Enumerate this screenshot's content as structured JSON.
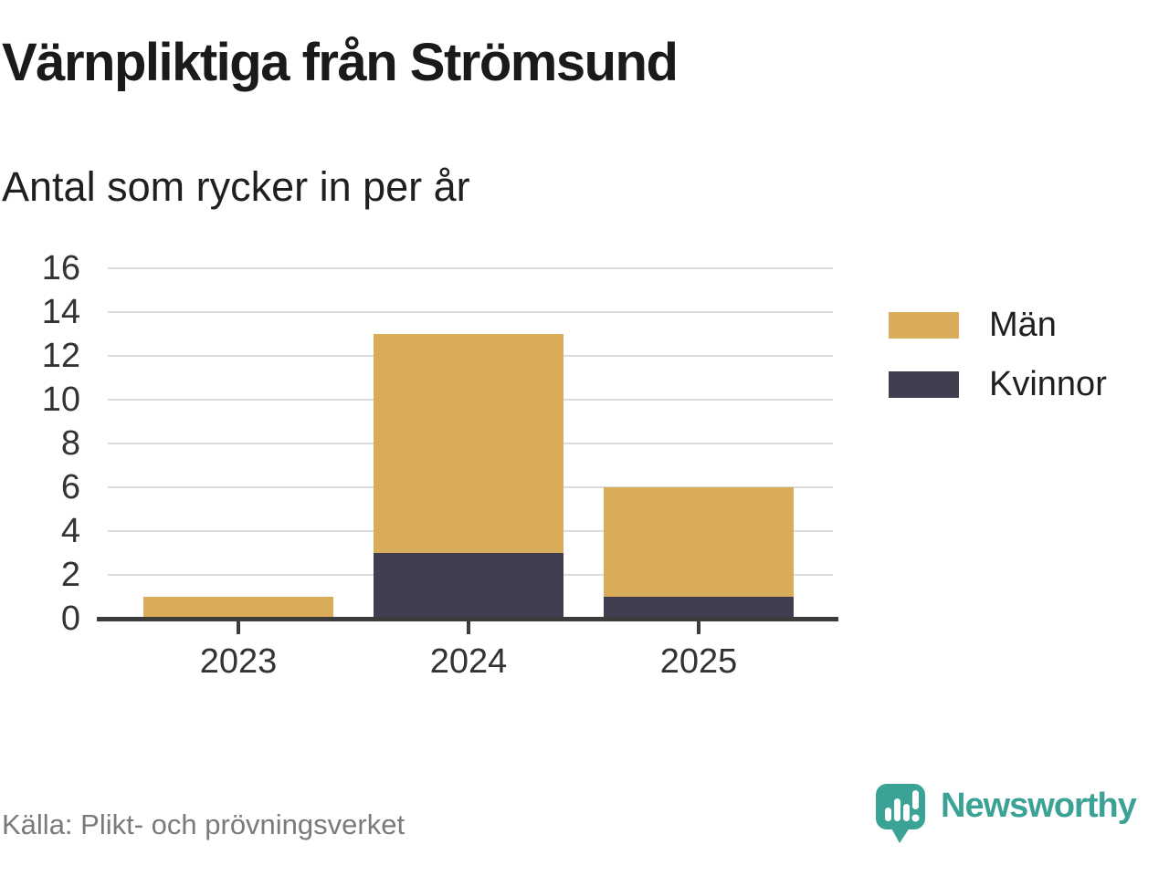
{
  "title": "Värnpliktiga från Strömsund",
  "subtitle": "Antal som rycker in per år",
  "source": "Källa: Plikt- och prövningsverket",
  "brand": {
    "name": "Newsworthy",
    "icon": "newsworthy-speech-bubble-chart-icon",
    "color": "#3BA296"
  },
  "colors": {
    "men": "#D9AC59",
    "women": "#413F4F",
    "grid": "#DDDDDD",
    "axis": "#3C3C3C",
    "tick_label": "#333333",
    "source_text": "#7A7A7A",
    "background": "#FFFFFF"
  },
  "chart_data": {
    "type": "bar",
    "stacked": true,
    "title": "Värnpliktiga från Strömsund",
    "subtitle": "Antal som rycker in per år",
    "categories": [
      "2023",
      "2024",
      "2025"
    ],
    "series": [
      {
        "name": "Män",
        "color": "#D9AC59",
        "values": [
          1,
          10,
          5
        ]
      },
      {
        "name": "Kvinnor",
        "color": "#413F4F",
        "values": [
          0,
          3,
          1
        ]
      }
    ],
    "stack_order_bottom_to_top": [
      "Kvinnor",
      "Män"
    ],
    "totals": [
      1,
      13,
      6
    ],
    "ylim": [
      0,
      16
    ],
    "yticks": [
      0,
      2,
      4,
      6,
      8,
      10,
      12,
      14,
      16
    ],
    "grid": true,
    "legend_position": "right"
  }
}
